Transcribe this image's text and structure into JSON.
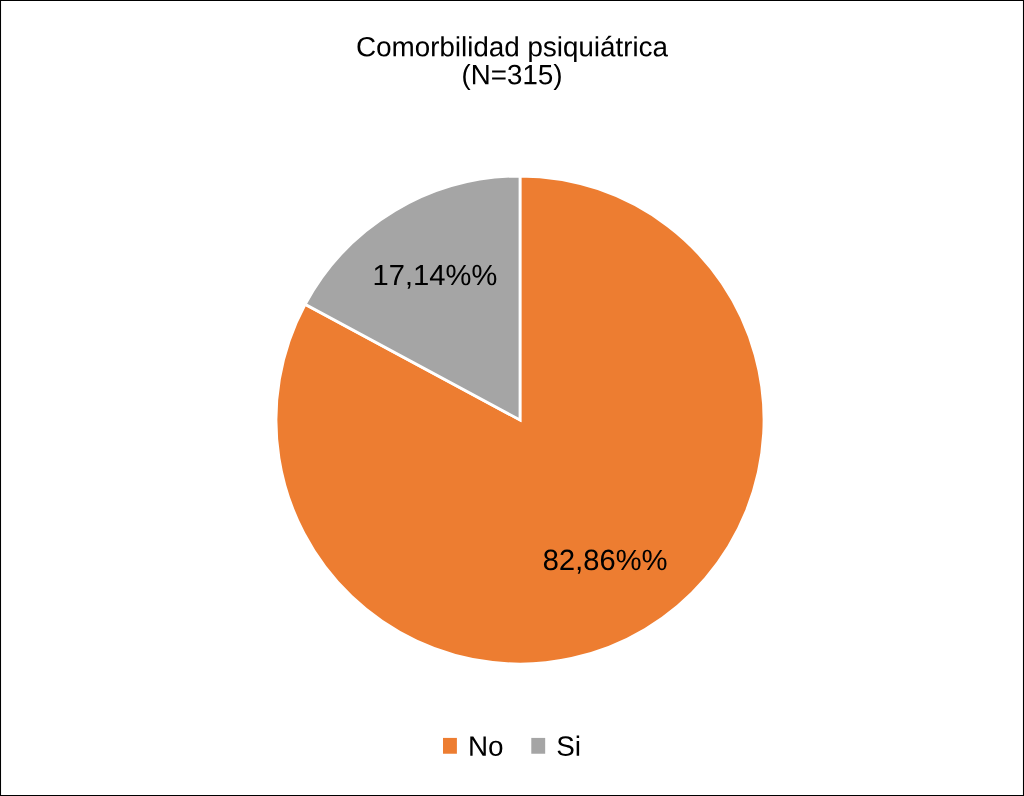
{
  "chart_data": {
    "type": "pie",
    "title": "Comorbilidad psiquiátrica\n(N=315)",
    "categories": [
      "No",
      "Si"
    ],
    "values": [
      82.86,
      17.14
    ],
    "colors": [
      "#ed7d31",
      "#a5a5a5"
    ],
    "value_labels": [
      "82,86%%",
      "17,14%%"
    ],
    "legend": "bottom"
  }
}
